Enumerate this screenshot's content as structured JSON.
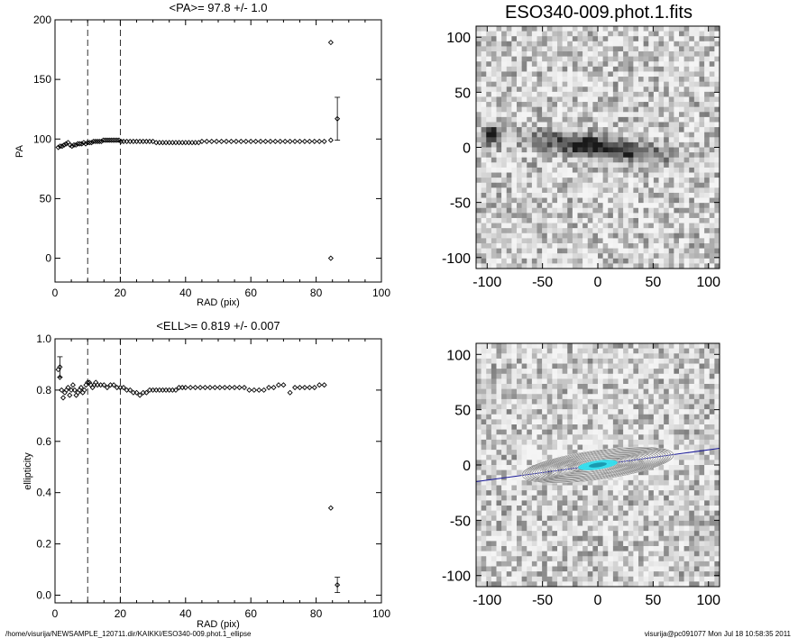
{
  "chart_data": [
    {
      "type": "scatter",
      "title": "<PA>=  97.8 +/-   1.0",
      "xlabel": "RAD (pix)",
      "ylabel": "PA",
      "xlim": [
        0,
        100
      ],
      "ylim": [
        -20,
        200
      ],
      "xticks": [
        "0",
        "20",
        "40",
        "60",
        "80",
        "100"
      ],
      "yticks": [
        "0",
        "50",
        "100",
        "150",
        "200"
      ],
      "vlines": [
        10,
        20
      ],
      "grid": false,
      "series": [
        {
          "x": [
            1.0,
            1.6,
            2.2,
            2.8,
            3.4,
            4.0,
            4.6,
            5.2,
            5.8,
            6.4,
            7.0,
            7.6,
            8.2,
            8.8,
            9.4,
            10.0,
            10.6,
            11.2,
            11.8,
            12.4,
            13.0,
            13.6,
            14.2,
            14.8,
            15.4,
            16.0,
            16.6,
            17.2,
            17.8,
            18.4,
            19.0,
            19.6,
            20.2,
            21.0,
            22.0,
            23.0,
            24.0,
            25.0,
            26.0,
            27.0,
            28.0,
            29.0,
            30.0,
            31.0,
            32.0,
            33.0,
            34.0,
            35.0,
            36.0,
            37.0,
            38.0,
            39.0,
            40.0,
            41.0,
            42.0,
            43.0,
            44.0,
            45.0,
            46.5,
            48.0,
            49.5,
            51.0,
            52.5,
            54.0,
            55.5,
            57.0,
            58.5,
            60.0,
            61.5,
            63.0,
            64.5,
            66.0,
            67.5,
            69.0,
            70.5,
            72.0,
            73.5,
            75.0,
            76.5,
            78.0,
            79.5,
            81.0,
            82.5,
            84.5
          ],
          "y": [
            93,
            94,
            94,
            95,
            96,
            97,
            95,
            94,
            95,
            95,
            96,
            96,
            96,
            97,
            96,
            97,
            97,
            97,
            98,
            98,
            98,
            98,
            98,
            99,
            99,
            99,
            99,
            99,
            99,
            99,
            99,
            99,
            98,
            98,
            98,
            98,
            98,
            98,
            98,
            98,
            98,
            98,
            98,
            97,
            97,
            97,
            97,
            97,
            97,
            97,
            97,
            97,
            97,
            97,
            97,
            97,
            97,
            98,
            98,
            98,
            98,
            98,
            98,
            98,
            98,
            98,
            98,
            98,
            98,
            98,
            98,
            98,
            98,
            98,
            98,
            98,
            98,
            98,
            98,
            98,
            98,
            98,
            98,
            99
          ]
        },
        {
          "x": [
            84.5
          ],
          "y": [
            181
          ]
        },
        {
          "x": [
            84.5
          ],
          "y": [
            0
          ]
        }
      ],
      "errorbars": [
        {
          "x": 86.5,
          "y": 117,
          "err": 18
        }
      ]
    },
    {
      "type": "scatter",
      "title": "<ELL>= 0.819 +/-  0.007",
      "xlabel": "RAD (pix)",
      "ylabel": "ellipticity",
      "xlim": [
        0,
        100
      ],
      "ylim": [
        -0.03,
        1.0
      ],
      "xticks": [
        "0",
        "20",
        "40",
        "60",
        "80",
        "100"
      ],
      "yticks": [
        "0.0",
        "0.2",
        "0.4",
        "0.6",
        "0.8",
        "1.0"
      ],
      "vlines": [
        10,
        20
      ],
      "grid": false,
      "series": [
        {
          "x": [
            1.0,
            1.5,
            2.0,
            2.5,
            3.0,
            3.5,
            4.0,
            4.5,
            5.0,
            5.5,
            6.0,
            6.5,
            7.0,
            7.5,
            8.0,
            8.5,
            9.0,
            9.5,
            10.0,
            10.5,
            11.0,
            11.5,
            12.0,
            12.5,
            13.0,
            14.0,
            15.0,
            16.0,
            17.0,
            18.0,
            19.0,
            20.0,
            21.0,
            22.0,
            23.0,
            24.0,
            25.0,
            26.0,
            27.0,
            28.0,
            29.0,
            30.0,
            31.0,
            32.0,
            33.0,
            34.0,
            35.0,
            36.0,
            37.0,
            38.0,
            39.0,
            40.0,
            41.5,
            43.0,
            44.5,
            46.0,
            47.5,
            49.0,
            50.5,
            52.0,
            53.5,
            55.0,
            56.5,
            58.0,
            59.5,
            61.0,
            62.5,
            64.0,
            65.5,
            67.0,
            68.5,
            70.0,
            72.0,
            73.5,
            75.0,
            76.5,
            78.0,
            79.5,
            81.0,
            82.5
          ],
          "y": [
            0.88,
            0.85,
            0.8,
            0.77,
            0.79,
            0.8,
            0.81,
            0.78,
            0.8,
            0.82,
            0.8,
            0.78,
            0.79,
            0.8,
            0.81,
            0.79,
            0.8,
            0.82,
            0.83,
            0.83,
            0.82,
            0.81,
            0.82,
            0.83,
            0.82,
            0.82,
            0.82,
            0.81,
            0.82,
            0.82,
            0.81,
            0.81,
            0.81,
            0.8,
            0.8,
            0.79,
            0.79,
            0.78,
            0.79,
            0.79,
            0.8,
            0.8,
            0.8,
            0.8,
            0.8,
            0.8,
            0.8,
            0.8,
            0.8,
            0.81,
            0.81,
            0.81,
            0.81,
            0.81,
            0.81,
            0.81,
            0.81,
            0.81,
            0.81,
            0.81,
            0.81,
            0.81,
            0.81,
            0.81,
            0.8,
            0.8,
            0.8,
            0.8,
            0.81,
            0.81,
            0.82,
            0.82,
            0.79,
            0.81,
            0.81,
            0.81,
            0.81,
            0.81,
            0.82,
            0.82
          ]
        },
        {
          "x": [
            84.5
          ],
          "y": [
            0.34
          ]
        }
      ],
      "errorbars": [
        {
          "x": 1.5,
          "y": 0.89,
          "err": 0.04
        },
        {
          "x": 86.5,
          "y": 0.04,
          "err": 0.03
        }
      ]
    },
    {
      "type": "heatmap",
      "title": "ESO340-009.phot.1.fits",
      "xlim": [
        -110,
        110
      ],
      "ylim": [
        -110,
        110
      ],
      "xticks": [
        "-100",
        "-50",
        "0",
        "50",
        "100"
      ],
      "yticks": [
        "-100",
        "-50",
        "0",
        "50",
        "100"
      ],
      "colormap": "grayscale, darker = brighter source"
    },
    {
      "type": "heatmap",
      "title": "",
      "xlim": [
        -110,
        110
      ],
      "ylim": [
        -110,
        110
      ],
      "xticks": [
        "-100",
        "-50",
        "0",
        "50",
        "100"
      ],
      "yticks": [
        "-100",
        "-50",
        "0",
        "50",
        "100"
      ],
      "overlay": "fitted isophote ellipses with cyan core and major-axis line",
      "pa_deg": 97.8,
      "colors": {
        "core": "#33e0f0",
        "axis_line": "#1a1a99"
      }
    }
  ],
  "footer": {
    "path": "/home/visurija/NEWSAMPLE_120711.dir/KAIKKI/ESO340-009.phot.1_ellipse",
    "stamp": "visurija@pc091077  Mon Jul 18 10:58:35 2011"
  }
}
